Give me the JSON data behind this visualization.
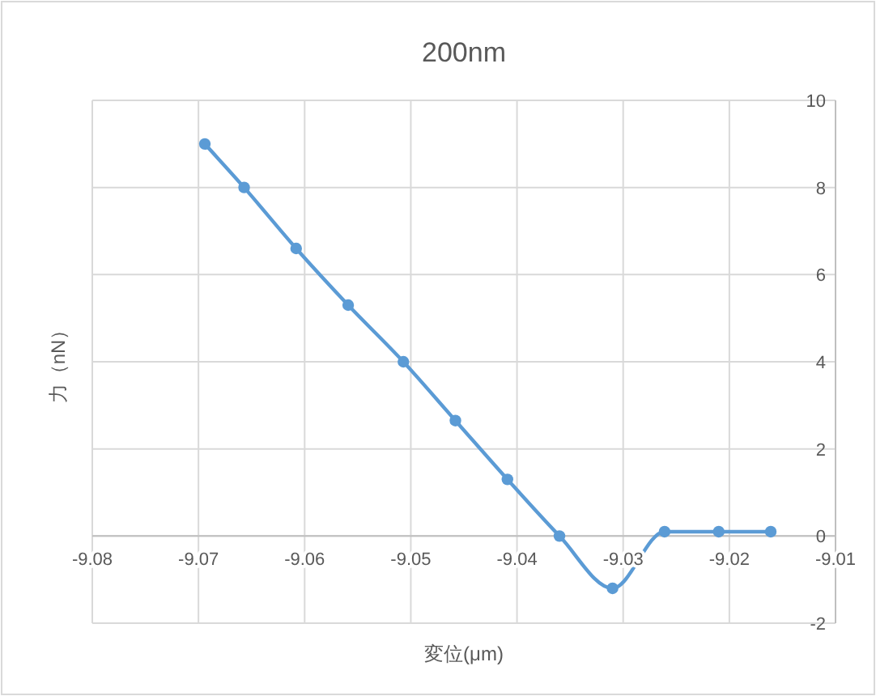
{
  "chart_data": {
    "type": "line",
    "title": "200nm",
    "xlabel": "変位(μm)",
    "ylabel": "力（nN）",
    "x": [
      -9.0694,
      -9.0657,
      -9.0608,
      -9.0559,
      -9.0507,
      -9.0458,
      -9.0409,
      -9.036,
      -9.031,
      -9.0261,
      -9.021,
      -9.0161
    ],
    "series": [
      {
        "color": "#5b9bd5",
        "values": [
          9.0,
          8.0,
          6.6,
          5.3,
          4.0,
          2.65,
          1.3,
          0.0,
          -1.2,
          0.1,
          0.1,
          0.1
        ]
      }
    ],
    "xlim": [
      -9.08,
      -9.01
    ],
    "xticks": [
      -9.08,
      -9.07,
      -9.06,
      -9.05,
      -9.04,
      -9.03,
      -9.02,
      -9.01
    ],
    "ylim": [
      -2,
      10
    ],
    "yticks": [
      -2,
      0,
      2,
      4,
      6,
      8,
      10
    ],
    "grid": true,
    "marker": "circle",
    "line_style": "solid"
  }
}
